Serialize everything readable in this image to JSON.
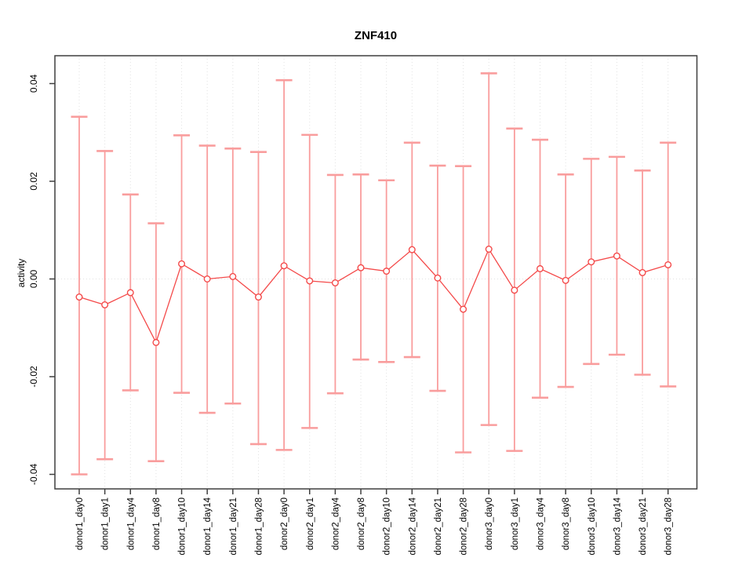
{
  "figure": {
    "background": "#ffffff"
  },
  "chart_data": {
    "type": "scatter",
    "subtype": "points-with-error-bars",
    "title": "ZNF410",
    "xlabel": "",
    "ylabel": "activity",
    "categories": [
      "donor1_day0",
      "donor1_day1",
      "donor1_day4",
      "donor1_day8",
      "donor1_day10",
      "donor1_day14",
      "donor1_day21",
      "donor1_day28",
      "donor2_day0",
      "donor2_day1",
      "donor2_day4",
      "donor2_day8",
      "donor2_day10",
      "donor2_day14",
      "donor2_day21",
      "donor2_day28",
      "donor3_day0",
      "donor3_day1",
      "donor3_day4",
      "donor3_day8",
      "donor3_day10",
      "donor3_day14",
      "donor3_day21",
      "donor3_day28"
    ],
    "series": [
      {
        "name": "activity",
        "means": [
          -0.0037,
          -0.0053,
          -0.0028,
          -0.013,
          0.0031,
          0.0,
          0.0005,
          -0.0037,
          0.0027,
          -0.0004,
          -0.0008,
          0.0023,
          0.0016,
          0.006,
          0.0002,
          -0.0062,
          0.0061,
          -0.0023,
          0.0021,
          -0.0003,
          0.0035,
          0.0047,
          0.0013,
          0.0029
        ],
        "upper": [
          0.0332,
          0.0262,
          0.0173,
          0.0114,
          0.0294,
          0.0273,
          0.0267,
          0.026,
          0.0407,
          0.0295,
          0.0213,
          0.0214,
          0.0202,
          0.0279,
          0.0232,
          0.0231,
          0.0421,
          0.0308,
          0.0285,
          0.0214,
          0.0246,
          0.025,
          0.0222,
          0.0279
        ],
        "lower": [
          -0.04,
          -0.0369,
          -0.0228,
          -0.0373,
          -0.0233,
          -0.0274,
          -0.0255,
          -0.0338,
          -0.035,
          -0.0305,
          -0.0234,
          -0.0165,
          -0.017,
          -0.016,
          -0.0229,
          -0.0355,
          -0.0299,
          -0.0352,
          -0.0243,
          -0.0221,
          -0.0174,
          -0.0155,
          -0.0196,
          -0.022
        ]
      }
    ],
    "yticks": {
      "values": [
        0.04,
        0.02,
        0.0,
        -0.02,
        -0.04
      ],
      "labels": [
        "0.04",
        "0.02",
        "0.00",
        "-0.02",
        "-0.04"
      ]
    },
    "ylim": [
      -0.043,
      0.0457
    ],
    "grid": {
      "vertical_dotted": true,
      "zero_line_dotted": true
    },
    "legend": "none",
    "colors": {
      "error_bar": "#f99d9d",
      "point": "#f44a4a",
      "line": "#f44a4a",
      "grid": "#e2e2e2",
      "axis": "#3f3f3f",
      "text": "#000000"
    }
  }
}
